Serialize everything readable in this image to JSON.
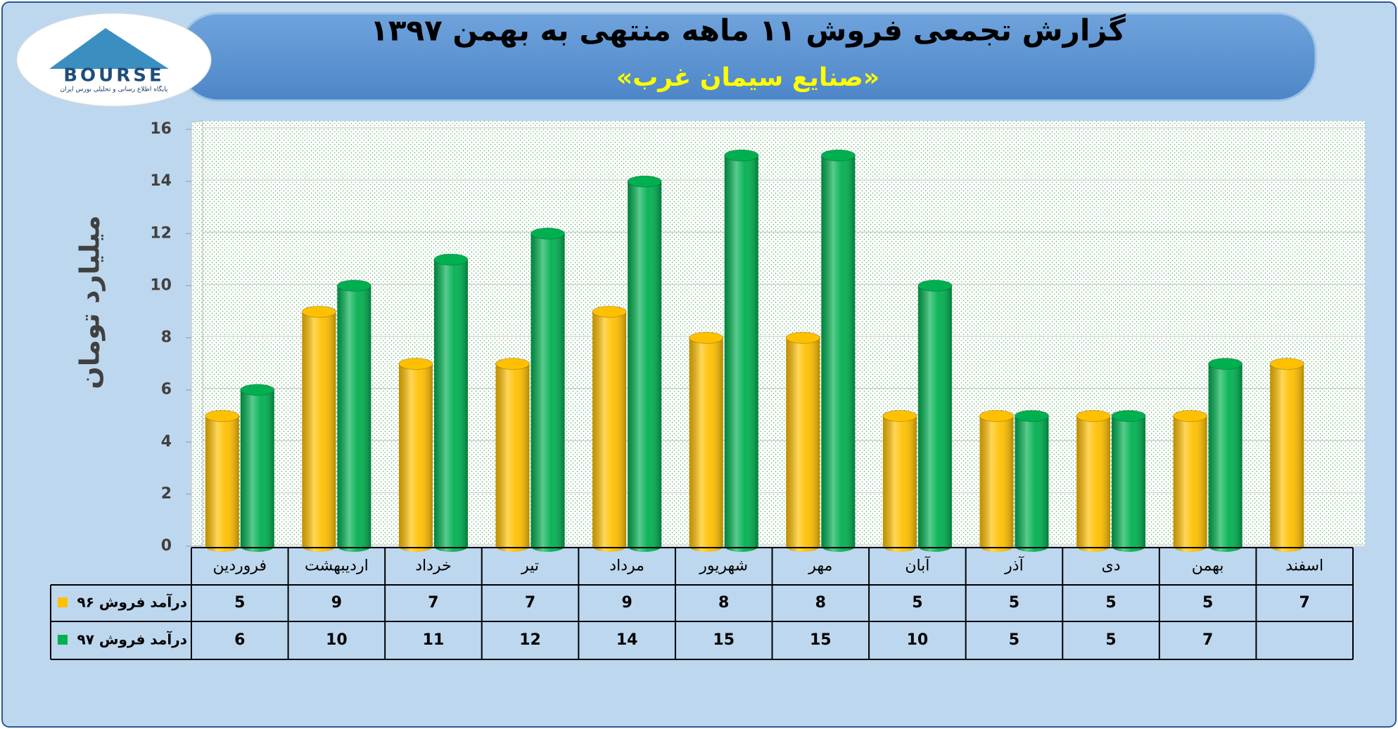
{
  "logo": {
    "name": "BOURSE",
    "tagline": "پایگاه اطلاع رسانی و تحلیلی بورس ایران"
  },
  "chart_data": {
    "type": "bar",
    "title": "گزارش تجمعی فروش ۱۱ ماهه منتهی به بهمن ۱۳۹۷",
    "subtitle": "«صنایع سیمان غرب»",
    "y_label": "میلیارد تومان",
    "categories": [
      "فروردین",
      "اردیبهشت",
      "خرداد",
      "تیر",
      "مرداد",
      "شهریور",
      "مهر",
      "آبان",
      "آذر",
      "دی",
      "بهمن",
      "اسفند"
    ],
    "series": [
      {
        "name": "درآمد فروش ۹۶",
        "color": "#ffc000",
        "values": [
          5,
          9,
          7,
          7,
          9,
          8,
          8,
          5,
          5,
          5,
          5,
          7
        ]
      },
      {
        "name": "درآمد فروش ۹۷",
        "color": "#00b050",
        "values": [
          6,
          10,
          11,
          12,
          14,
          15,
          15,
          10,
          5,
          5,
          7,
          null
        ]
      }
    ],
    "ylim": [
      0,
      16
    ],
    "yticks": [
      0,
      2,
      4,
      6,
      8,
      10,
      12,
      14,
      16
    ],
    "grid": true,
    "data_table": true
  }
}
